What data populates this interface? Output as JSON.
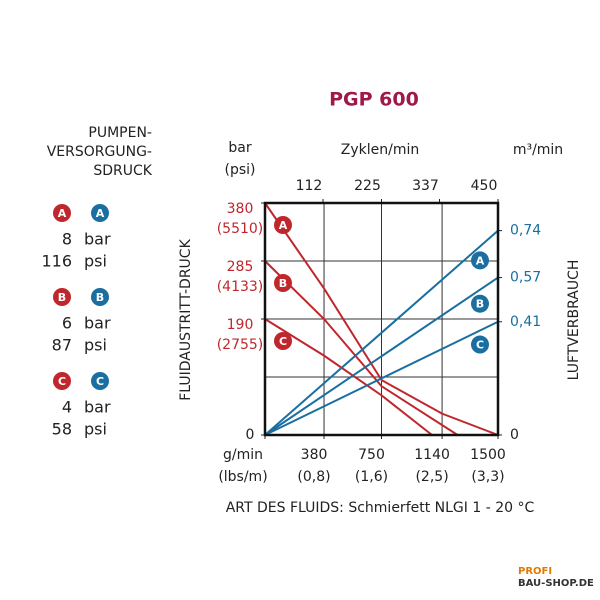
{
  "chart_data": {
    "type": "line",
    "title": "PGP 600",
    "legend_title": [
      "PUMPEN-",
      "VERSORGUNG-",
      "SDRUCK"
    ],
    "y_title": "FLUIDAUSTRITT-DRUCK",
    "y2_title": "LUFTVERBRAUCH",
    "y_unit": [
      "bar",
      "(psi)"
    ],
    "x2_title": "Zyklen/min",
    "y2_unit": "m³/min",
    "footer": "ART DES FLUIDS: Schmierfett NLGI 1 - 20 °C",
    "xlim": [
      0,
      1500
    ],
    "xticks": [
      {
        "value": 0,
        "label": "g/min",
        "sub": "(lbs/m)"
      },
      {
        "value": 380,
        "label": "380",
        "sub": "(0,8)"
      },
      {
        "value": 750,
        "label": "750",
        "sub": "(1,6)"
      },
      {
        "value": 1140,
        "label": "1140",
        "sub": "(2,5)"
      },
      {
        "value": 1500,
        "label": "1500",
        "sub": "(3,3)"
      }
    ],
    "x2lim": [
      0,
      450
    ],
    "x2ticks": [
      112,
      225,
      337,
      450
    ],
    "ylim": [
      0,
      380
    ],
    "yticks": [
      0,
      {
        "value": 190,
        "label": "190",
        "sub": "(2755)"
      },
      {
        "value": 285,
        "label": "285",
        "sub": "(4133)"
      },
      {
        "value": 380,
        "label": "380",
        "sub": "(5510)"
      }
    ],
    "ygrid": [
      95,
      190,
      285
    ],
    "y2lim": [
      0,
      0.84
    ],
    "y2ticks": [
      0,
      {
        "value": 0.41,
        "label": "0,41"
      },
      {
        "value": 0.57,
        "label": "0,57"
      },
      {
        "value": 0.74,
        "label": "0,74"
      }
    ],
    "grid": true,
    "series": [
      {
        "name": "A",
        "color": "#c0272d",
        "x": [
          0,
          380,
          750,
          1140,
          1500
        ],
        "values": [
          380,
          240,
          90,
          35,
          0
        ]
      },
      {
        "name": "B",
        "color": "#c0272d",
        "x": [
          0,
          380,
          750,
          1240
        ],
        "values": [
          285,
          190,
          80,
          0
        ]
      },
      {
        "name": "C",
        "color": "#c0272d",
        "x": [
          0,
          380,
          750,
          1075
        ],
        "values": [
          190,
          130,
          65,
          0
        ]
      },
      {
        "name": "A",
        "color": "#1a6fa0",
        "axis": "y2",
        "x": [
          0,
          1500
        ],
        "values": [
          0,
          0.74
        ]
      },
      {
        "name": "B",
        "color": "#1a6fa0",
        "axis": "y2",
        "x": [
          0,
          1500
        ],
        "values": [
          0,
          0.57
        ]
      },
      {
        "name": "C",
        "color": "#1a6fa0",
        "axis": "y2",
        "x": [
          0,
          1500
        ],
        "values": [
          0,
          0.41
        ]
      }
    ],
    "supply_units": [
      "bar",
      "psi"
    ],
    "supply": [
      {
        "bar": "8",
        "psi": "116"
      },
      {
        "bar": "6",
        "psi": "87"
      },
      {
        "bar": "4",
        "psi": "58"
      }
    ]
  },
  "watermark": [
    "PROFI",
    "BAU-SHOP.DE"
  ]
}
